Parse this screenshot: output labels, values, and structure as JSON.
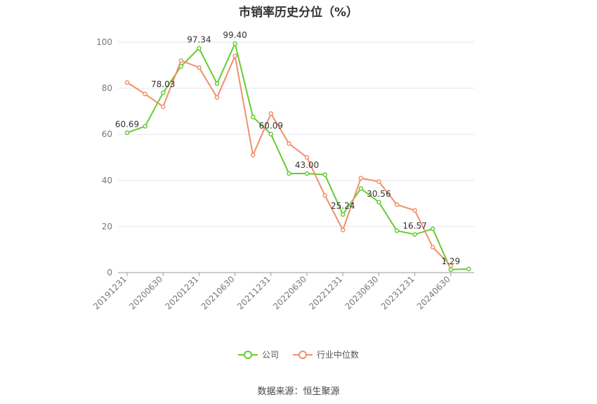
{
  "title": "市销率历史分位（%）",
  "source": "数据来源：恒生聚源",
  "legend": {
    "company": "公司",
    "industry": "行业中位数"
  },
  "colors": {
    "company": "#66cc33",
    "industry": "#f0906a"
  },
  "chart_data": {
    "type": "line",
    "title": "市销率历史分位（%）",
    "ylim": [
      0,
      100
    ],
    "yticks": [
      0,
      20,
      40,
      60,
      80,
      100
    ],
    "x": [
      "20191231",
      "20200331",
      "20200630",
      "20200930",
      "20201231",
      "20210331",
      "20210630",
      "20210930",
      "20211231",
      "20220331",
      "20220630",
      "20220930",
      "20221231",
      "20230331",
      "20230630",
      "20230930",
      "20231231",
      "20240331",
      "20240630",
      "20240930"
    ],
    "xtick_labels": [
      "20191231",
      "20200630",
      "20201231",
      "20210630",
      "20211231",
      "20220630",
      "20221231",
      "20230630",
      "20231231",
      "20240630"
    ],
    "series": [
      {
        "name": "公司",
        "key": "company",
        "values": [
          60.69,
          63.5,
          78.03,
          89.5,
          97.34,
          82.0,
          99.4,
          67.5,
          60.09,
          43.0,
          43.0,
          42.5,
          25.24,
          36.5,
          30.56,
          18.2,
          16.57,
          19.0,
          1.29,
          1.6
        ]
      },
      {
        "name": "行业中位数",
        "key": "industry",
        "values": [
          82.5,
          77.5,
          72.0,
          92.0,
          89.0,
          76.0,
          94.0,
          51.0,
          69.0,
          56.0,
          50.0,
          33.5,
          18.5,
          41.0,
          39.5,
          29.5,
          27.0,
          11.0,
          3.0,
          null
        ]
      }
    ],
    "data_labels": [
      {
        "index": 0,
        "text": "60.69"
      },
      {
        "index": 2,
        "text": "78.03"
      },
      {
        "index": 4,
        "text": "97.34"
      },
      {
        "index": 6,
        "text": "99.40"
      },
      {
        "index": 8,
        "text": "60.09"
      },
      {
        "index": 10,
        "text": "43.00"
      },
      {
        "index": 12,
        "text": "25.24"
      },
      {
        "index": 14,
        "text": "30.56"
      },
      {
        "index": 16,
        "text": "16.57"
      },
      {
        "index": 18,
        "text": "1.29"
      }
    ],
    "grid": true,
    "legend_position": "bottom"
  }
}
